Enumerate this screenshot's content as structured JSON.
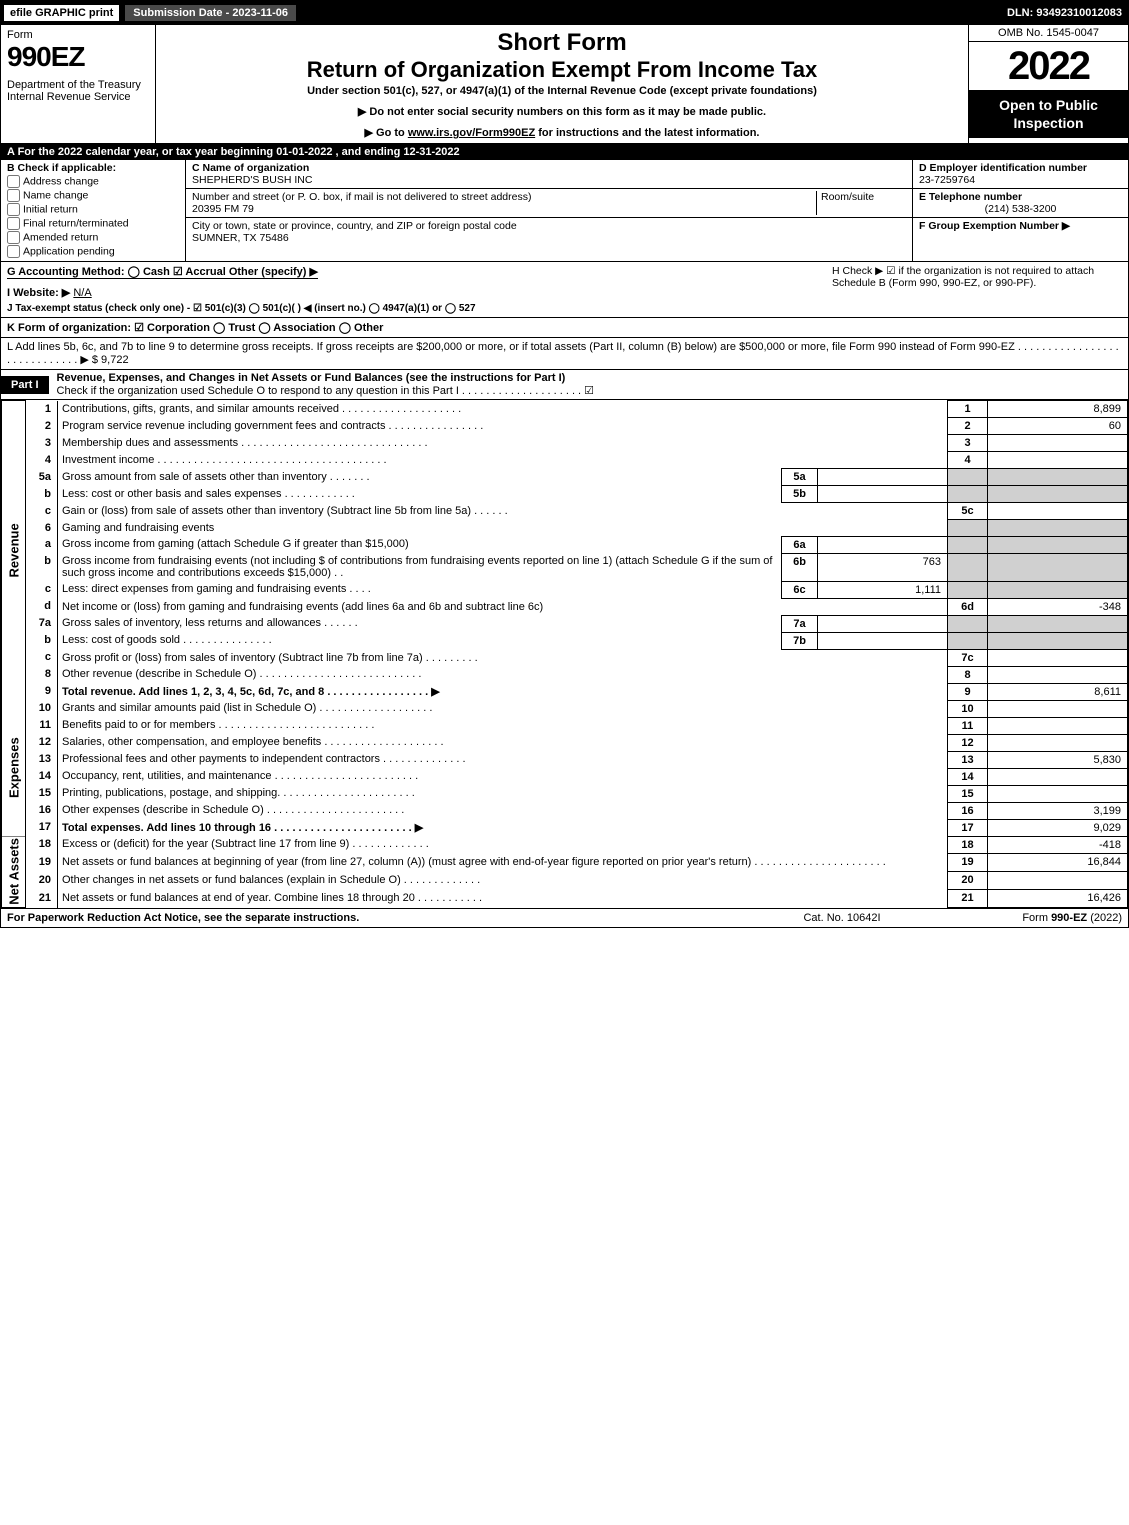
{
  "topbar": {
    "efile": "efile GRAPHIC print",
    "submission": "Submission Date - 2023-11-06",
    "dln": "DLN: 93492310012083"
  },
  "header": {
    "form_word": "Form",
    "form_no": "990EZ",
    "dept": "Department of the Treasury\nInternal Revenue Service",
    "short": "Short Form",
    "title": "Return of Organization Exempt From Income Tax",
    "under": "Under section 501(c), 527, or 4947(a)(1) of the Internal Revenue Code (except private foundations)",
    "note1": "▶ Do not enter social security numbers on this form as it may be made public.",
    "note2_pre": "▶ Go to ",
    "note2_link": "www.irs.gov/Form990EZ",
    "note2_post": " for instructions and the latest information.",
    "omb": "OMB No. 1545-0047",
    "year": "2022",
    "open": "Open to Public Inspection"
  },
  "line_a": "A  For the 2022 calendar year, or tax year beginning 01-01-2022  , and ending 12-31-2022",
  "col_b": {
    "title": "B  Check if applicable:",
    "opts": [
      "Address change",
      "Name change",
      "Initial return",
      "Final return/terminated",
      "Amended return",
      "Application pending"
    ]
  },
  "col_c": {
    "name_label": "C Name of organization",
    "name": "SHEPHERD'S BUSH INC",
    "addr_label": "Number and street (or P. O. box, if mail is not delivered to street address)",
    "room_label": "Room/suite",
    "addr": "20395 FM 79",
    "city_label": "City or town, state or province, country, and ZIP or foreign postal code",
    "city": "SUMNER, TX  75486"
  },
  "col_d": {
    "ein_label": "D Employer identification number",
    "ein": "23-7259764",
    "phone_label": "E Telephone number",
    "phone": "(214) 538-3200",
    "group_label": "F Group Exemption Number  ▶"
  },
  "g_line": "G Accounting Method:   ◯ Cash   ☑ Accrual   Other (specify) ▶ ",
  "h_line": "H   Check ▶  ☑  if the organization is not required to attach Schedule B (Form 990, 990-EZ, or 990-PF).",
  "i_line_label": "I Website: ▶",
  "i_line_val": "N/A",
  "j_line": "J Tax-exempt status (check only one) -  ☑ 501(c)(3)  ◯  501(c)(  ) ◀ (insert no.)  ◯  4947(a)(1) or  ◯  527",
  "k_line": "K Form of organization:   ☑ Corporation   ◯ Trust   ◯ Association   ◯ Other  ",
  "l_line_pre": "L Add lines 5b, 6c, and 7b to line 9 to determine gross receipts. If gross receipts are $200,000 or more, or if total assets (Part II, column (B) below) are $500,000 or more, file Form 990 instead of Form 990-EZ  .  .  .  .  .  .  .  .  .  .  .  .  .  .  .  .  .  .  .  .  .  .  .  .  .  .  .  .  . ▶ $ ",
  "l_line_val": "9,722",
  "part1": {
    "tag": "Part I",
    "title": "Revenue, Expenses, and Changes in Net Assets or Fund Balances (see the instructions for Part I)",
    "check": "Check if the organization used Schedule O to respond to any question in this Part I  .  .  .  .  .  .  .  .  .  .  .  .  .  .  .  .  .  .  .  .   ☑"
  },
  "sections": {
    "revenue": "Revenue",
    "expenses": "Expenses",
    "net": "Net Assets"
  },
  "rows": [
    {
      "n": "1",
      "d": "Contributions, gifts, grants, and similar amounts received  .  .  .  .  .  .  .  .  .  .  .  .  .  .  .  .  .  .  .  .",
      "box": "1",
      "val": "8,899"
    },
    {
      "n": "2",
      "d": "Program service revenue including government fees and contracts  .  .  .  .  .  .  .  .  .  .  .  .  .  .  .  .",
      "box": "2",
      "val": "60"
    },
    {
      "n": "3",
      "d": "Membership dues and assessments  .  .  .  .  .  .  .  .  .  .  .  .  .  .  .  .  .  .  .  .  .  .  .  .  .  .  .  .  .  .  .",
      "box": "3",
      "val": ""
    },
    {
      "n": "4",
      "d": "Investment income  .  .  .  .  .  .  .  .  .  .  .  .  .  .  .  .  .  .  .  .  .  .  .  .  .  .  .  .  .  .  .  .  .  .  .  .  .  .",
      "box": "4",
      "val": ""
    },
    {
      "n": "5a",
      "d": "Gross amount from sale of assets other than inventory  .  .  .  .  .  .  .",
      "sub": "5a",
      "subval": ""
    },
    {
      "n": "b",
      "d": "Less: cost or other basis and sales expenses  .  .  .  .  .  .  .  .  .  .  .  .",
      "sub": "5b",
      "subval": ""
    },
    {
      "n": "c",
      "d": "Gain or (loss) from sale of assets other than inventory (Subtract line 5b from line 5a)  .  .  .  .  .  .",
      "box": "5c",
      "val": ""
    },
    {
      "n": "6",
      "d": "Gaming and fundraising events"
    },
    {
      "n": "a",
      "d": "Gross income from gaming (attach Schedule G if greater than $15,000)",
      "sub": "6a",
      "subval": ""
    },
    {
      "n": "b",
      "d": "Gross income from fundraising events (not including $                                  of contributions from fundraising events reported on line 1) (attach Schedule G if the sum of such gross income and contributions exceeds $15,000)   .   .",
      "sub": "6b",
      "subval": "763"
    },
    {
      "n": "c",
      "d": "Less: direct expenses from gaming and fundraising events    .  .  .  .",
      "sub": "6c",
      "subval": "1,111"
    },
    {
      "n": "d",
      "d": "Net income or (loss) from gaming and fundraising events (add lines 6a and 6b and subtract line 6c)",
      "box": "6d",
      "val": "-348"
    },
    {
      "n": "7a",
      "d": "Gross sales of inventory, less returns and allowances  .  .  .  .  .  .",
      "sub": "7a",
      "subval": ""
    },
    {
      "n": "b",
      "d": "Less: cost of goods sold            .  .  .  .  .  .  .  .  .  .  .  .  .  .  .",
      "sub": "7b",
      "subval": ""
    },
    {
      "n": "c",
      "d": "Gross profit or (loss) from sales of inventory (Subtract line 7b from line 7a)  .  .  .  .  .  .  .  .  .",
      "box": "7c",
      "val": ""
    },
    {
      "n": "8",
      "d": "Other revenue (describe in Schedule O) .  .  .  .  .  .  .  .  .  .  .  .  .  .  .  .  .  .  .  .  .  .  .  .  .  .  .",
      "box": "8",
      "val": ""
    },
    {
      "n": "9",
      "d": "Total revenue. Add lines 1, 2, 3, 4, 5c, 6d, 7c, and 8   .  .  .  .  .  .  .  .  .  .  .  .  .  .  .  .  .          ▶",
      "box": "9",
      "val": "8,611",
      "bold": true
    }
  ],
  "exp_rows": [
    {
      "n": "10",
      "d": "Grants and similar amounts paid (list in Schedule O)  .  .  .  .  .  .  .  .  .  .  .  .  .  .  .  .  .  .  .",
      "box": "10",
      "val": ""
    },
    {
      "n": "11",
      "d": "Benefits paid to or for members        .  .  .  .  .  .  .  .  .  .  .  .  .  .  .  .  .  .  .  .  .  .  .  .  .  .",
      "box": "11",
      "val": ""
    },
    {
      "n": "12",
      "d": "Salaries, other compensation, and employee benefits .  .  .  .  .  .  .  .  .  .  .  .  .  .  .  .  .  .  .  .",
      "box": "12",
      "val": ""
    },
    {
      "n": "13",
      "d": "Professional fees and other payments to independent contractors  .  .  .  .  .  .  .  .  .  .  .  .  .  .",
      "box": "13",
      "val": "5,830"
    },
    {
      "n": "14",
      "d": "Occupancy, rent, utilities, and maintenance .  .  .  .  .  .  .  .  .  .  .  .  .  .  .  .  .  .  .  .  .  .  .  .",
      "box": "14",
      "val": ""
    },
    {
      "n": "15",
      "d": "Printing, publications, postage, and shipping.  .  .  .  .  .  .  .  .  .  .  .  .  .  .  .  .  .  .  .  .  .  .",
      "box": "15",
      "val": ""
    },
    {
      "n": "16",
      "d": "Other expenses (describe in Schedule O)      .  .  .  .  .  .  .  .  .  .  .  .  .  .  .  .  .  .  .  .  .  .  .",
      "box": "16",
      "val": "3,199"
    },
    {
      "n": "17",
      "d": "Total expenses. Add lines 10 through 16      .  .  .  .  .  .  .  .  .  .  .  .  .  .  .  .  .  .  .  .  .  .  .   ▶",
      "box": "17",
      "val": "9,029",
      "bold": true
    }
  ],
  "net_rows": [
    {
      "n": "18",
      "d": "Excess or (deficit) for the year (Subtract line 17 from line 9)        .  .  .  .  .  .  .  .  .  .  .  .  .",
      "box": "18",
      "val": "-418"
    },
    {
      "n": "19",
      "d": "Net assets or fund balances at beginning of year (from line 27, column (A)) (must agree with end-of-year figure reported on prior year's return) .  .  .  .  .  .  .  .  .  .  .  .  .  .  .  .  .  .  .  .  .  .",
      "box": "19",
      "val": "16,844"
    },
    {
      "n": "20",
      "d": "Other changes in net assets or fund balances (explain in Schedule O) .  .  .  .  .  .  .  .  .  .  .  .  .",
      "box": "20",
      "val": ""
    },
    {
      "n": "21",
      "d": "Net assets or fund balances at end of year. Combine lines 18 through 20 .  .  .  .  .  .  .  .  .  .  .",
      "box": "21",
      "val": "16,426"
    }
  ],
  "footer": {
    "left": "For Paperwork Reduction Act Notice, see the separate instructions.",
    "mid": "Cat. No. 10642I",
    "right_pre": "Form ",
    "right_form": "990-EZ",
    "right_post": " (2022)"
  }
}
